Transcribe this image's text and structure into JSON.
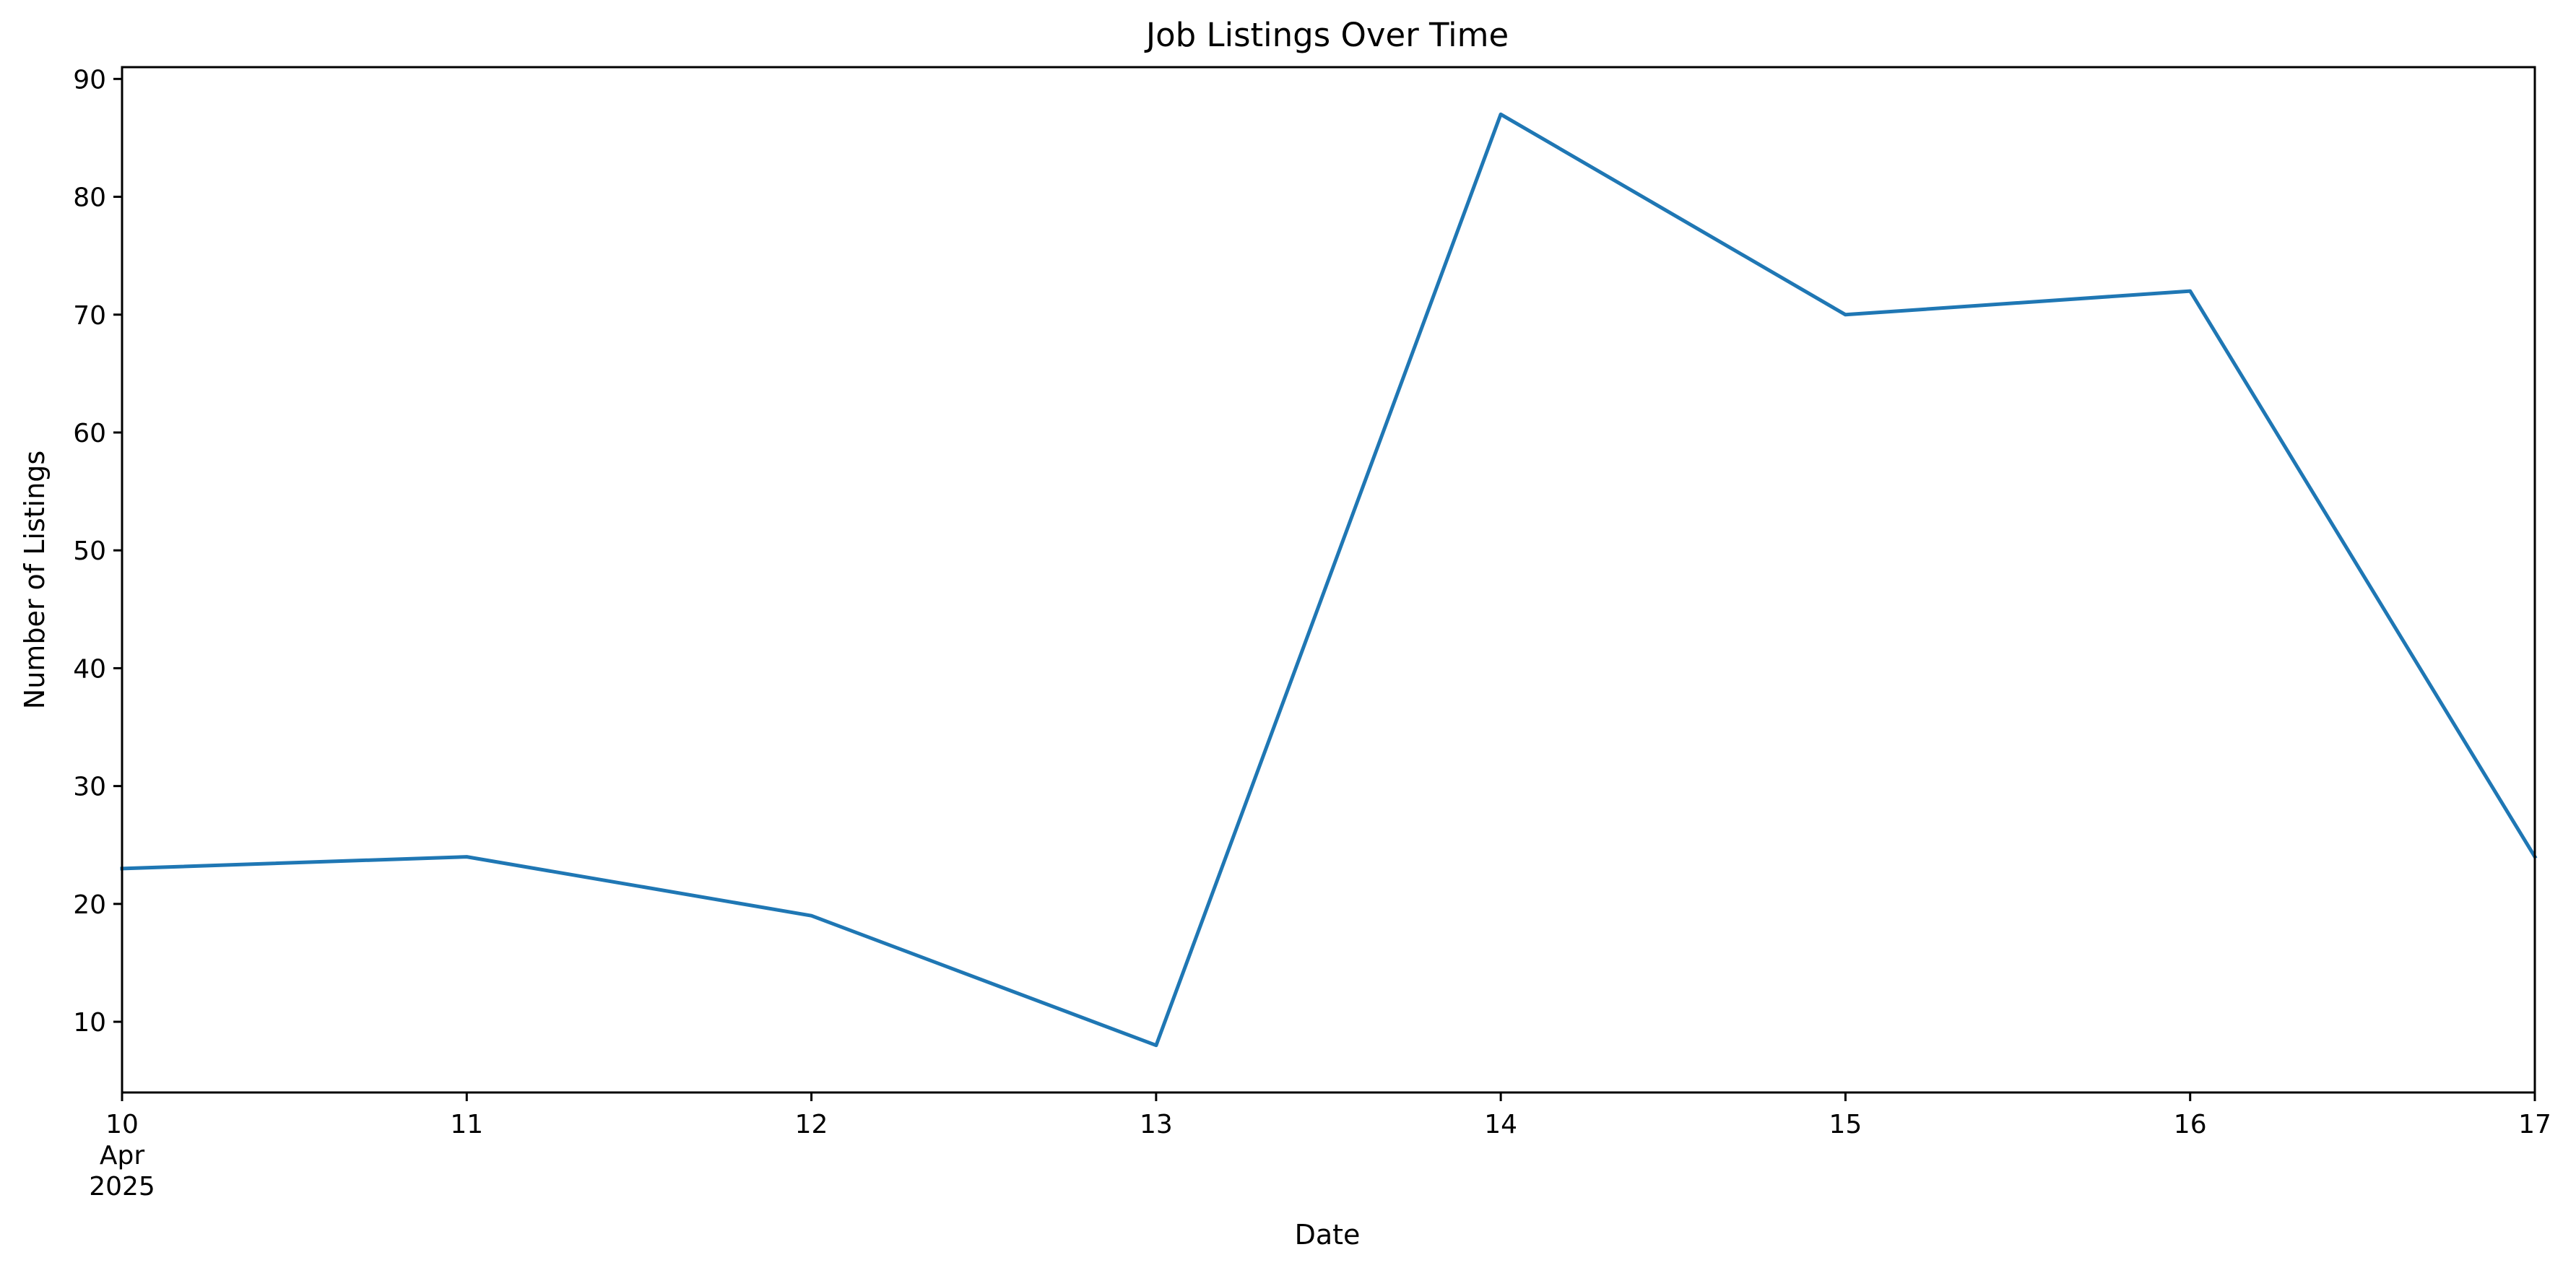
{
  "chart_data": {
    "type": "line",
    "title": "Job Listings Over Time",
    "xlabel": "Date",
    "ylabel": "Number of Listings",
    "x": [
      "2025-04-10",
      "2025-04-11",
      "2025-04-12",
      "2025-04-13",
      "2025-04-14",
      "2025-04-15",
      "2025-04-16",
      "2025-04-17"
    ],
    "x_tick_labels": [
      {
        "day": "10",
        "month": "Apr",
        "year": "2025"
      },
      {
        "day": "11"
      },
      {
        "day": "12"
      },
      {
        "day": "13"
      },
      {
        "day": "14"
      },
      {
        "day": "15"
      },
      {
        "day": "16"
      },
      {
        "day": "17"
      }
    ],
    "series": [
      {
        "values": [
          23,
          24,
          19,
          8,
          87,
          70,
          72,
          24
        ],
        "color": "#1f77b4"
      }
    ],
    "xlim": [
      "2025-04-10",
      "2025-04-17"
    ],
    "ylim": [
      4,
      91
    ],
    "y_ticks": [
      10,
      20,
      30,
      40,
      50,
      60,
      70,
      80,
      90
    ],
    "y_tick_labels": [
      "10",
      "20",
      "30",
      "40",
      "50",
      "60",
      "70",
      "80",
      "90"
    ],
    "grid": false,
    "legend": false
  }
}
